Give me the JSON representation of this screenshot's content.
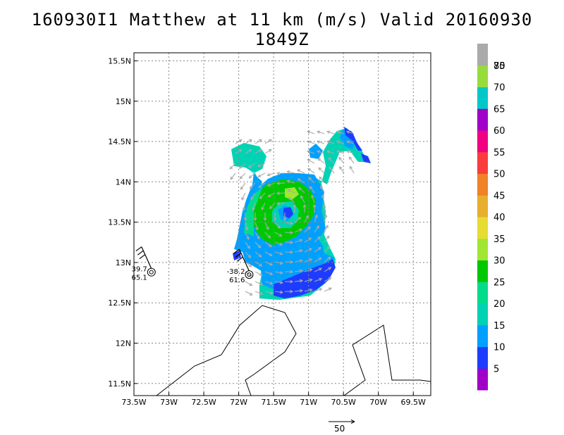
{
  "title": "160930I1 Matthew at 11 km (m/s) Valid 20160930 1849Z",
  "map": {
    "lon_range": [
      -73.5,
      -69.25
    ],
    "lat_range": [
      11.35,
      15.6
    ],
    "x_ticks": [
      {
        "lon": -73.5,
        "label": "73.5W"
      },
      {
        "lon": -73.0,
        "label": "73W"
      },
      {
        "lon": -72.5,
        "label": "72.5W"
      },
      {
        "lon": -72.0,
        "label": "72W"
      },
      {
        "lon": -71.5,
        "label": "71.5W"
      },
      {
        "lon": -71.0,
        "label": "71W"
      },
      {
        "lon": -70.5,
        "label": "70.5W"
      },
      {
        "lon": -70.0,
        "label": "70W"
      },
      {
        "lon": -69.5,
        "label": "69.5W"
      }
    ],
    "y_ticks": [
      {
        "lat": 11.5,
        "label": "11.5N"
      },
      {
        "lat": 12.0,
        "label": "12N"
      },
      {
        "lat": 12.5,
        "label": "12.5N"
      },
      {
        "lat": 13.0,
        "label": "13N"
      },
      {
        "lat": 13.5,
        "label": "13.5N"
      },
      {
        "lat": 14.0,
        "label": "14N"
      },
      {
        "lat": 14.5,
        "label": "14.5N"
      },
      {
        "lat": 15.0,
        "label": "15N"
      },
      {
        "lat": 15.5,
        "label": "15.5N"
      }
    ],
    "gridlines": true
  },
  "colorbar": {
    "levels": [
      {
        "label": "5",
        "color": "#a000c8"
      },
      {
        "label": "10",
        "color": "#1e3cff"
      },
      {
        "label": "15",
        "color": "#00a0ff"
      },
      {
        "label": "20",
        "color": "#00d2b4"
      },
      {
        "label": "25",
        "color": "#00dc8c"
      },
      {
        "label": "30",
        "color": "#00c800"
      },
      {
        "label": "35",
        "color": "#a0e632"
      },
      {
        "label": "40",
        "color": "#e6dc32"
      },
      {
        "label": "45",
        "color": "#e6af2d"
      },
      {
        "label": "50",
        "color": "#f08228"
      },
      {
        "label": "55",
        "color": "#fa3c3c"
      },
      {
        "label": "60",
        "color": "#f00082"
      },
      {
        "label": "65",
        "color": "#a000c8"
      },
      {
        "label": "70",
        "color": "#00c8c8"
      },
      {
        "label": "75",
        "color": "#96dc3c"
      },
      {
        "label": "80",
        "color": "#aaaaaa"
      }
    ]
  },
  "observations": [
    {
      "name": "obs-west",
      "lon": -73.25,
      "lat": 12.88,
      "temp": "39.7",
      "value": "65.1"
    },
    {
      "name": "obs-center",
      "lon": -71.85,
      "lat": 12.85,
      "temp": "-38.2",
      "value": "61.6"
    }
  ],
  "reference_vector": {
    "label": "50"
  }
}
